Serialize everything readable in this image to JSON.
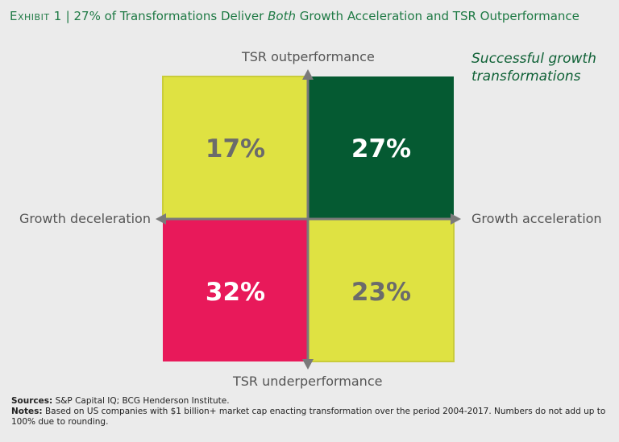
{
  "header": {
    "exhibit_label": "Exhibit 1",
    "separator": "|",
    "title_part1": "27% of Transformations Deliver",
    "title_emphasis": "Both",
    "title_part2": "Growth Acceleration and TSR Outperformance"
  },
  "chart_data": {
    "type": "quadrant",
    "axes": {
      "top": "TSR outperformance",
      "bottom": "TSR underperformance",
      "left": "Growth deceleration",
      "right": "Growth acceleration"
    },
    "quadrants": [
      {
        "id": "top-left",
        "label": "17%",
        "value": 17,
        "fill": "#dfe242",
        "text_color": "#6b6b6b"
      },
      {
        "id": "top-right",
        "label": "27%",
        "value": 27,
        "fill": "#055a32",
        "text_color": "#ffffff"
      },
      {
        "id": "bottom-left",
        "label": "32%",
        "value": 32,
        "fill": "#e8195a",
        "text_color": "#ffffff"
      },
      {
        "id": "bottom-right",
        "label": "23%",
        "value": 23,
        "fill": "#dfe242",
        "text_color": "#6b6b6b"
      }
    ],
    "annotation": {
      "line1": "Successful growth",
      "line2": "transformations"
    }
  },
  "footer": {
    "sources_label": "Sources:",
    "sources_text": "S&P Capital IQ; BCG Henderson Institute.",
    "notes_label": "Notes:",
    "notes_text": "Based on US companies with $1 billion+ market cap enacting transformation over the period 2004-2017. Numbers do not add up to 100% due to rounding."
  },
  "colors": {
    "title": "#1f7a45",
    "axis": "#7a7a7a",
    "border_yellow": "#c9cc3a"
  }
}
